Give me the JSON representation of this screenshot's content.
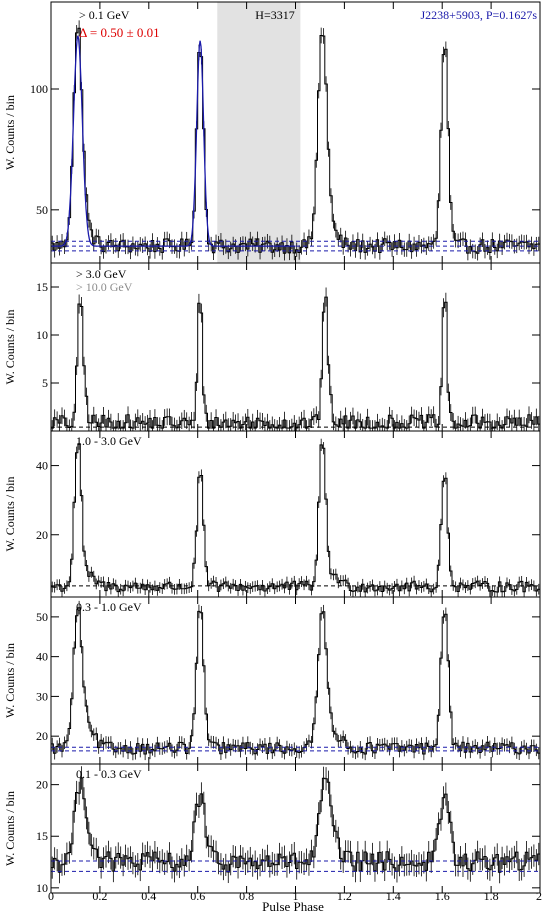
{
  "chart_data": [
    {
      "type": "line",
      "panel_label": "> 0.1 GeV",
      "ylabel": "W. Counts / bin",
      "ylim": [
        28,
        136
      ],
      "yticks": [
        50,
        100
      ],
      "xlim": [
        0,
        2
      ],
      "base": 35,
      "peaks": [
        {
          "x": 0.11,
          "y": 122,
          "w": 0.018
        },
        {
          "x": 0.61,
          "y": 120,
          "w": 0.014
        }
      ],
      "bridge": {
        "x": 0.14,
        "y": 46,
        "w": 0.03
      },
      "noise": 3.0,
      "baseline_lines": [
        33,
        35,
        37
      ],
      "model_curve": {
        "color": "#1a1aaa",
        "xrange": [
          0,
          1
        ]
      },
      "annotations": {
        "delta": "Δ = 0.50 ± 0.01",
        "hval": "H=3317",
        "source": "J2238+5903, P=0.1627s"
      },
      "offpulse_band": [
        0.68,
        1.02
      ]
    },
    {
      "type": "line",
      "panel_label": "> 3.0 GeV",
      "panel_label_2": "> 10.0 GeV",
      "ylabel": "W. Counts / bin",
      "ylim": [
        0,
        17.5
      ],
      "yticks": [
        5,
        10,
        15
      ],
      "xlim": [
        0,
        2
      ],
      "base": 0.8,
      "peaks": [
        {
          "x": 0.12,
          "y": 13.5,
          "w": 0.011
        },
        {
          "x": 0.61,
          "y": 15.0,
          "w": 0.009
        }
      ],
      "bridge": {
        "x": 0.14,
        "y": 3,
        "w": 0.015
      },
      "noise": 0.9,
      "baseline_lines": [
        0.4
      ]
    },
    {
      "type": "line",
      "panel_label": "1.0 - 3.0 GeV",
      "ylabel": "W. Counts / bin",
      "ylim": [
        2,
        50
      ],
      "yticks": [
        20,
        40
      ],
      "xlim": [
        0,
        2
      ],
      "base": 5,
      "peaks": [
        {
          "x": 0.11,
          "y": 46,
          "w": 0.014
        },
        {
          "x": 0.61,
          "y": 38,
          "w": 0.013
        }
      ],
      "bridge": {
        "x": 0.15,
        "y": 10,
        "w": 0.03
      },
      "noise": 1.6,
      "baseline_lines": [
        5.2
      ]
    },
    {
      "type": "line",
      "panel_label": "0.3 - 1.0 GeV",
      "ylabel": "W. Counts / bin",
      "ylim": [
        13,
        55
      ],
      "yticks": [
        20,
        30,
        40,
        50
      ],
      "xlim": [
        0,
        2
      ],
      "base": 17,
      "peaks": [
        {
          "x": 0.11,
          "y": 50,
          "w": 0.018
        },
        {
          "x": 0.61,
          "y": 52,
          "w": 0.015
        }
      ],
      "bridge": {
        "x": 0.15,
        "y": 24,
        "w": 0.03
      },
      "noise": 1.5,
      "baseline_lines": [
        16.3,
        17.2
      ]
    },
    {
      "type": "line",
      "panel_label": "0.1 - 0.3 GeV",
      "ylabel": "W. Counts / bin",
      "ylim": [
        9.5,
        22
      ],
      "yticks": [
        10,
        15,
        20
      ],
      "xlim": [
        0,
        2
      ],
      "base": 12.5,
      "peaks": [
        {
          "x": 0.12,
          "y": 19.5,
          "w": 0.022
        },
        {
          "x": 0.61,
          "y": 19,
          "w": 0.02
        }
      ],
      "bridge": {
        "x": 0.15,
        "y": 15,
        "w": 0.03
      },
      "noise": 1.0,
      "baseline_lines": [
        11.6,
        12.6
      ]
    }
  ],
  "xlabel": "Pulse Phase",
  "xticks": [
    "0",
    "0.2",
    "0.4",
    "0.6",
    "0.8",
    "1",
    "1.2",
    "1.4",
    "1.6",
    "1.8",
    "2"
  ],
  "colors": {
    "data": "#000000",
    "model": "#1a1aaa",
    "baseline": "#1a1aaa",
    "delta_text": "#dd0000",
    "source_text": "#1a1aaa",
    "band": "#e2e2e2",
    "secondary_label": "#8c8c8c"
  }
}
